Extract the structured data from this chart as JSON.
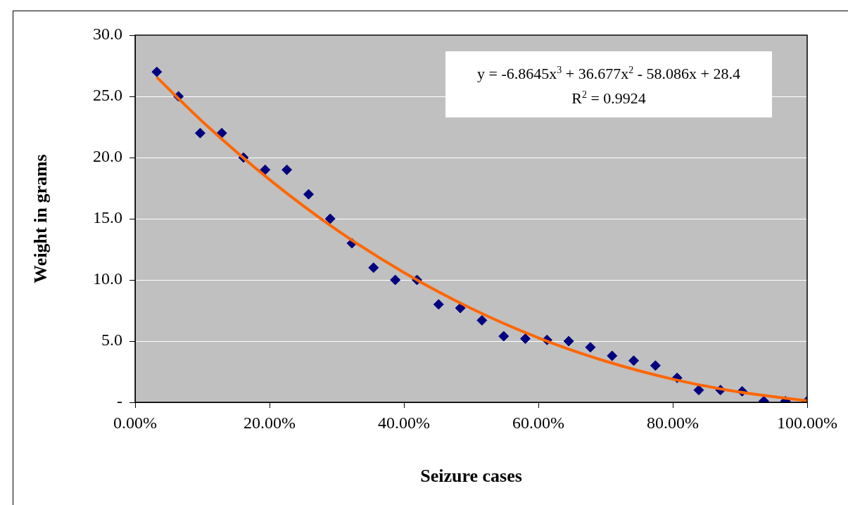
{
  "chart_data": {
    "type": "scatter",
    "xlabel": "Seizure cases",
    "ylabel": "Weight in grams",
    "annotations": [
      "y = -6.8645x$^{3}$ + 36.677x$^{2}$ - 58.086x + 28.4",
      "R$^{2}$ = 0.9924"
    ],
    "series": [
      {
        "type": "scatter",
        "color": "#000080",
        "marker": "diamond",
        "x": [
          0.0323,
          0.0645,
          0.0968,
          0.129,
          0.1613,
          0.1935,
          0.2258,
          0.2581,
          0.2903,
          0.3226,
          0.3548,
          0.3871,
          0.4194,
          0.4516,
          0.4839,
          0.5161,
          0.5484,
          0.5806,
          0.6129,
          0.6452,
          0.6774,
          0.7097,
          0.7419,
          0.7742,
          0.8065,
          0.8387,
          0.871,
          0.9032,
          0.9355,
          0.9677,
          1
        ],
        "values": [
          27,
          25,
          22,
          22,
          20,
          19,
          19,
          17,
          15,
          13,
          11,
          10,
          10,
          8,
          7.7,
          6.7,
          5.4,
          5.2,
          5.1,
          5.0,
          4.5,
          3.8,
          3.4,
          3.0,
          2.0,
          1.0,
          1.0,
          0.9,
          0.1,
          0.1,
          0.1
        ]
      },
      {
        "type": "line",
        "color": "#ff6600",
        "marker": "none",
        "line_style": "solid",
        "x": [
          0.0323,
          0.1,
          0.2,
          0.3,
          0.4,
          0.5,
          0.6,
          0.7,
          0.8,
          0.9,
          1
        ],
        "values": [
          26.56,
          22.95,
          18.2,
          14.09,
          10.6,
          7.67,
          5.27,
          3.36,
          1.89,
          0.83,
          0.13
        ]
      }
    ],
    "xlim": [
      0,
      1
    ],
    "xticks": [
      {
        "value": 0,
        "label": "0.00%"
      },
      {
        "value": 0.2,
        "label": "20.00%"
      },
      {
        "value": 0.4,
        "label": "40.00%"
      },
      {
        "value": 0.6,
        "label": "60.00%"
      },
      {
        "value": 0.8,
        "label": "80.00%"
      },
      {
        "value": 1,
        "label": "100.00%"
      }
    ],
    "ylim": [
      0,
      30
    ],
    "yticks": [
      {
        "value": 0,
        "label": "-"
      },
      {
        "value": 5,
        "label": "5.0"
      },
      {
        "value": 10,
        "label": "10.0"
      },
      {
        "value": 15,
        "label": "15.0"
      },
      {
        "value": 20,
        "label": "20.0"
      },
      {
        "value": 25,
        "label": "25.0"
      },
      {
        "value": 30,
        "label": "30.0"
      }
    ],
    "grid": "y"
  }
}
